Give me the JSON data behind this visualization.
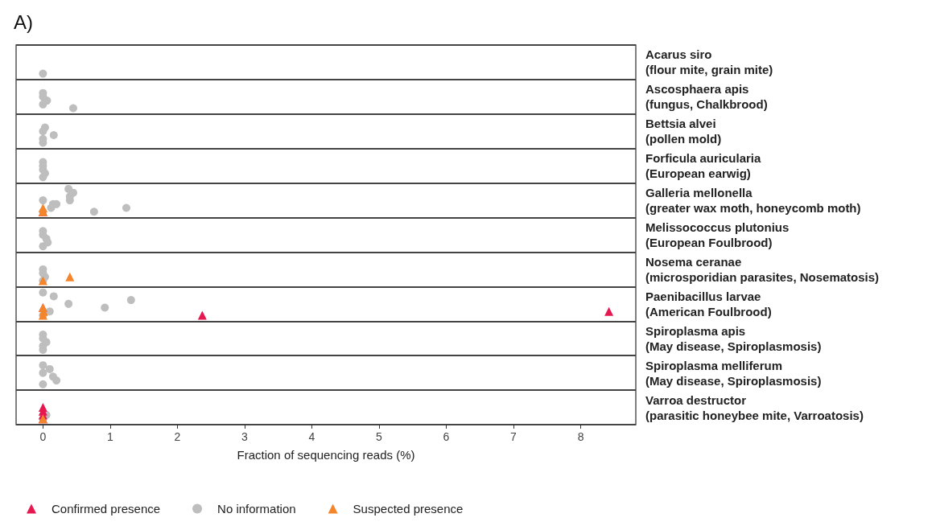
{
  "chart_data": {
    "type": "scatter",
    "title": "A)",
    "xlabel": "Fraction of sequencing reads (%)",
    "orientation": "horizontal",
    "grid": false,
    "legend": "bottom left",
    "xlim": [
      -0.4,
      8.82
    ],
    "xticks": [
      0,
      1,
      2,
      3,
      4,
      5,
      6,
      7,
      8
    ],
    "categories": [
      "Acarus siro\n(flour mite, grain mite)",
      "Ascosphaera apis\n(fungus, Chalkbrood)",
      "Bettsia alvei\n(pollen mold)",
      "Forficula auricularia\n(European earwig)",
      "Galleria mellonella\n(greater wax moth, honeycomb moth)",
      "Melissococcus plutonius\n(European Foulbrood)",
      "Nosema ceranae\n(microsporidian parasites, Nosematosis)",
      "Paenibacillus larvae\n(American Foulbrood)",
      "Spiroplasma apis\n(May disease, Spiroplasmosis)",
      "Spiroplasma melliferum\n(May disease, Spiroplasmosis)",
      "Varroa destructor\n(parasitic honeybee mite, Varroatosis)"
    ],
    "series": [
      {
        "name": "Confirmed presence",
        "color": "#e5194f",
        "marker": "triangle",
        "x": [
          "Galleria mellonella\n(greater wax moth, honeycomb moth)",
          "Paenibacillus larvae\n(American Foulbrood)",
          "Paenibacillus larvae\n(American Foulbrood)",
          "Paenibacillus larvae\n(American Foulbrood)",
          "Varroa destructor\n(parasitic honeybee mite, Varroatosis)",
          "Varroa destructor\n(parasitic honeybee mite, Varroatosis)",
          "Varroa destructor\n(parasitic honeybee mite, Varroatosis)",
          "Varroa destructor\n(parasitic honeybee mite, Varroatosis)"
        ],
        "values": [
          0,
          2.37,
          8.42,
          0,
          0,
          0,
          0,
          0
        ]
      },
      {
        "name": "No information",
        "color": "#bebebe",
        "marker": "circle",
        "x": [
          "Acarus siro\n(flour mite, grain mite)",
          "Ascosphaera apis\n(fungus, Chalkbrood)",
          "Ascosphaera apis\n(fungus, Chalkbrood)",
          "Ascosphaera apis\n(fungus, Chalkbrood)",
          "Ascosphaera apis\n(fungus, Chalkbrood)",
          "Ascosphaera apis\n(fungus, Chalkbrood)",
          "Bettsia alvei\n(pollen mold)",
          "Bettsia alvei\n(pollen mold)",
          "Bettsia alvei\n(pollen mold)",
          "Bettsia alvei\n(pollen mold)",
          "Bettsia alvei\n(pollen mold)",
          "Forficula auricularia\n(European earwig)",
          "Forficula auricularia\n(European earwig)",
          "Forficula auricularia\n(European earwig)",
          "Forficula auricularia\n(European earwig)",
          "Forficula auricularia\n(European earwig)",
          "Galleria mellonella\n(greater wax moth, honeycomb moth)",
          "Galleria mellonella\n(greater wax moth, honeycomb moth)",
          "Galleria mellonella\n(greater wax moth, honeycomb moth)",
          "Galleria mellonella\n(greater wax moth, honeycomb moth)",
          "Galleria mellonella\n(greater wax moth, honeycomb moth)",
          "Galleria mellonella\n(greater wax moth, honeycomb moth)",
          "Galleria mellonella\n(greater wax moth, honeycomb moth)",
          "Galleria mellonella\n(greater wax moth, honeycomb moth)",
          "Galleria mellonella\n(greater wax moth, honeycomb moth)",
          "Galleria mellonella\n(greater wax moth, honeycomb moth)",
          "Galleria mellonella\n(greater wax moth, honeycomb moth)",
          "Melissococcus plutonius\n(European Foulbrood)",
          "Melissococcus plutonius\n(European Foulbrood)",
          "Melissococcus plutonius\n(European Foulbrood)",
          "Melissococcus plutonius\n(European Foulbrood)",
          "Melissococcus plutonius\n(European Foulbrood)",
          "Nosema ceranae\n(microsporidian parasites, Nosematosis)",
          "Nosema ceranae\n(microsporidian parasites, Nosematosis)",
          "Nosema ceranae\n(microsporidian parasites, Nosematosis)",
          "Nosema ceranae\n(microsporidian parasites, Nosematosis)",
          "Paenibacillus larvae\n(American Foulbrood)",
          "Paenibacillus larvae\n(American Foulbrood)",
          "Paenibacillus larvae\n(American Foulbrood)",
          "Paenibacillus larvae\n(American Foulbrood)",
          "Paenibacillus larvae\n(American Foulbrood)",
          "Paenibacillus larvae\n(American Foulbrood)",
          "Paenibacillus larvae\n(American Foulbrood)",
          "Spiroplasma apis\n(May disease, Spiroplasmosis)",
          "Spiroplasma apis\n(May disease, Spiroplasmosis)",
          "Spiroplasma apis\n(May disease, Spiroplasmosis)",
          "Spiroplasma apis\n(May disease, Spiroplasmosis)",
          "Spiroplasma apis\n(May disease, Spiroplasmosis)",
          "Spiroplasma melliferum\n(May disease, Spiroplasmosis)",
          "Spiroplasma melliferum\n(May disease, Spiroplasmosis)",
          "Spiroplasma melliferum\n(May disease, Spiroplasmosis)",
          "Spiroplasma melliferum\n(May disease, Spiroplasmosis)",
          "Spiroplasma melliferum\n(May disease, Spiroplasmosis)",
          "Spiroplasma melliferum\n(May disease, Spiroplasmosis)",
          "Varroa destructor\n(parasitic honeybee mite, Varroatosis)",
          "Varroa destructor\n(parasitic honeybee mite, Varroatosis)"
        ],
        "values": [
          0,
          0.45,
          0,
          0.06,
          0,
          0,
          0,
          0,
          0.16,
          0,
          0.03,
          0,
          0.03,
          0,
          0,
          0,
          0,
          0.12,
          0.2,
          0.4,
          0.4,
          0.45,
          0.38,
          0.76,
          1.24,
          0.15,
          0,
          0,
          0.07,
          0.05,
          0,
          0,
          0,
          0.03,
          0,
          0,
          0,
          0.1,
          0.92,
          0.38,
          1.31,
          0.16,
          0,
          0,
          0,
          0.05,
          0,
          0,
          0,
          0.2,
          0.15,
          0,
          0.1,
          0,
          0,
          0.05
        ]
      },
      {
        "name": "Suspected presence",
        "color": "#f5852b",
        "marker": "triangle",
        "x": [
          "Galleria mellonella\n(greater wax moth, honeycomb moth)",
          "Galleria mellonella\n(greater wax moth, honeycomb moth)",
          "Nosema ceranae\n(microsporidian parasites, Nosematosis)",
          "Nosema ceranae\n(microsporidian parasites, Nosematosis)",
          "Paenibacillus larvae\n(American Foulbrood)",
          "Paenibacillus larvae\n(American Foulbrood)",
          "Paenibacillus larvae\n(American Foulbrood)",
          "Varroa destructor\n(parasitic honeybee mite, Varroatosis)"
        ],
        "values": [
          0,
          0,
          0,
          0.4,
          0,
          0.01,
          0,
          0
        ]
      }
    ]
  }
}
